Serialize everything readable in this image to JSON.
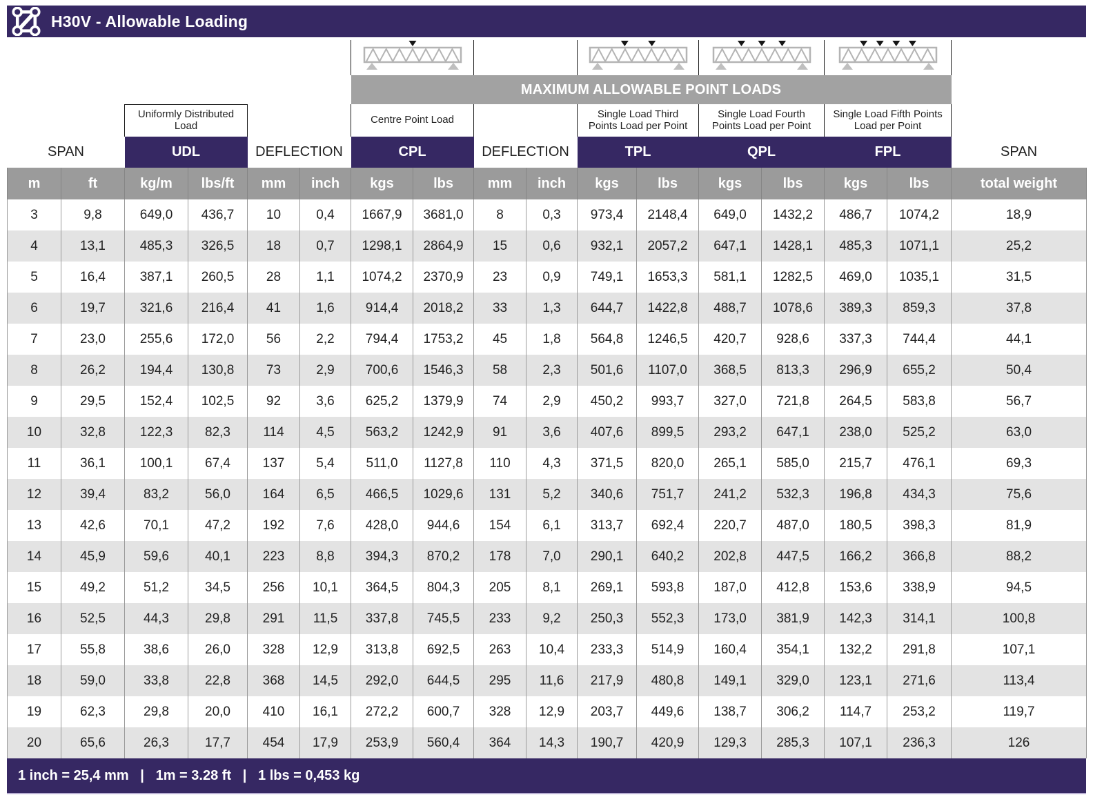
{
  "title": "H30V - Allowable Loading",
  "banner": "MAXIMUM ALLOWABLE POINT LOADS",
  "groups": {
    "span_left": "SPAN",
    "udl": "UDL",
    "deflection1": "DEFLECTION",
    "cpl": "CPL",
    "deflection2": "DEFLECTION",
    "tpl": "TPL",
    "qpl": "QPL",
    "fpl": "FPL",
    "span_right": "SPAN"
  },
  "descriptions": {
    "udl": "Uniformly Distributed Load",
    "cpl": "Centre Point Load",
    "tpl": "Single Load Third Points Load per Point",
    "qpl": "Single Load Fourth Points Load per Point",
    "fpl": "Single Load Fifth Points Load per Point"
  },
  "diagrams": {
    "cpl": 1,
    "tpl": 2,
    "qpl": 3,
    "fpl": 4
  },
  "table": {
    "units": [
      "m",
      "ft",
      "kg/m",
      "lbs/ft",
      "mm",
      "inch",
      "kgs",
      "lbs",
      "mm",
      "inch",
      "kgs",
      "lbs",
      "kgs",
      "lbs",
      "kgs",
      "lbs",
      "total weight"
    ],
    "rows": [
      [
        "3",
        "9,8",
        "649,0",
        "436,7",
        "10",
        "0,4",
        "1667,9",
        "3681,0",
        "8",
        "0,3",
        "973,4",
        "2148,4",
        "649,0",
        "1432,2",
        "486,7",
        "1074,2",
        "18,9"
      ],
      [
        "4",
        "13,1",
        "485,3",
        "326,5",
        "18",
        "0,7",
        "1298,1",
        "2864,9",
        "15",
        "0,6",
        "932,1",
        "2057,2",
        "647,1",
        "1428,1",
        "485,3",
        "1071,1",
        "25,2"
      ],
      [
        "5",
        "16,4",
        "387,1",
        "260,5",
        "28",
        "1,1",
        "1074,2",
        "2370,9",
        "23",
        "0,9",
        "749,1",
        "1653,3",
        "581,1",
        "1282,5",
        "469,0",
        "1035,1",
        "31,5"
      ],
      [
        "6",
        "19,7",
        "321,6",
        "216,4",
        "41",
        "1,6",
        "914,4",
        "2018,2",
        "33",
        "1,3",
        "644,7",
        "1422,8",
        "488,7",
        "1078,6",
        "389,3",
        "859,3",
        "37,8"
      ],
      [
        "7",
        "23,0",
        "255,6",
        "172,0",
        "56",
        "2,2",
        "794,4",
        "1753,2",
        "45",
        "1,8",
        "564,8",
        "1246,5",
        "420,7",
        "928,6",
        "337,3",
        "744,4",
        "44,1"
      ],
      [
        "8",
        "26,2",
        "194,4",
        "130,8",
        "73",
        "2,9",
        "700,6",
        "1546,3",
        "58",
        "2,3",
        "501,6",
        "1107,0",
        "368,5",
        "813,3",
        "296,9",
        "655,2",
        "50,4"
      ],
      [
        "9",
        "29,5",
        "152,4",
        "102,5",
        "92",
        "3,6",
        "625,2",
        "1379,9",
        "74",
        "2,9",
        "450,2",
        "993,7",
        "327,0",
        "721,8",
        "264,5",
        "583,8",
        "56,7"
      ],
      [
        "10",
        "32,8",
        "122,3",
        "82,3",
        "114",
        "4,5",
        "563,2",
        "1242,9",
        "91",
        "3,6",
        "407,6",
        "899,5",
        "293,2",
        "647,1",
        "238,0",
        "525,2",
        "63,0"
      ],
      [
        "11",
        "36,1",
        "100,1",
        "67,4",
        "137",
        "5,4",
        "511,0",
        "1127,8",
        "110",
        "4,3",
        "371,5",
        "820,0",
        "265,1",
        "585,0",
        "215,7",
        "476,1",
        "69,3"
      ],
      [
        "12",
        "39,4",
        "83,2",
        "56,0",
        "164",
        "6,5",
        "466,5",
        "1029,6",
        "131",
        "5,2",
        "340,6",
        "751,7",
        "241,2",
        "532,3",
        "196,8",
        "434,3",
        "75,6"
      ],
      [
        "13",
        "42,6",
        "70,1",
        "47,2",
        "192",
        "7,6",
        "428,0",
        "944,6",
        "154",
        "6,1",
        "313,7",
        "692,4",
        "220,7",
        "487,0",
        "180,5",
        "398,3",
        "81,9"
      ],
      [
        "14",
        "45,9",
        "59,6",
        "40,1",
        "223",
        "8,8",
        "394,3",
        "870,2",
        "178",
        "7,0",
        "290,1",
        "640,2",
        "202,8",
        "447,5",
        "166,2",
        "366,8",
        "88,2"
      ],
      [
        "15",
        "49,2",
        "51,2",
        "34,5",
        "256",
        "10,1",
        "364,5",
        "804,3",
        "205",
        "8,1",
        "269,1",
        "593,8",
        "187,0",
        "412,8",
        "153,6",
        "338,9",
        "94,5"
      ],
      [
        "16",
        "52,5",
        "44,3",
        "29,8",
        "291",
        "11,5",
        "337,8",
        "745,5",
        "233",
        "9,2",
        "250,3",
        "552,3",
        "173,0",
        "381,9",
        "142,3",
        "314,1",
        "100,8"
      ],
      [
        "17",
        "55,8",
        "38,6",
        "26,0",
        "328",
        "12,9",
        "313,8",
        "692,5",
        "263",
        "10,4",
        "233,3",
        "514,9",
        "160,4",
        "354,1",
        "132,2",
        "291,8",
        "107,1"
      ],
      [
        "18",
        "59,0",
        "33,8",
        "22,8",
        "368",
        "14,5",
        "292,0",
        "644,5",
        "295",
        "11,6",
        "217,9",
        "480,8",
        "149,1",
        "329,0",
        "123,1",
        "271,6",
        "113,4"
      ],
      [
        "19",
        "62,3",
        "29,8",
        "20,0",
        "410",
        "16,1",
        "272,2",
        "600,7",
        "328",
        "12,9",
        "203,7",
        "449,6",
        "138,7",
        "306,2",
        "114,7",
        "253,2",
        "119,7"
      ],
      [
        "20",
        "65,6",
        "26,3",
        "17,7",
        "454",
        "17,9",
        "253,9",
        "560,4",
        "364",
        "14,3",
        "190,7",
        "420,9",
        "129,3",
        "285,3",
        "107,1",
        "236,3",
        "126"
      ]
    ]
  },
  "footer": "1 inch = 25,4 mm   |   1m = 3.28 ft   |   1 lbs = 0,453 kg",
  "colors": {
    "purple": "#362863",
    "banner_gray": "#a2a2a2",
    "units_gray": "#9b9b9b",
    "row_alt_gray": "#e3e3e3"
  }
}
